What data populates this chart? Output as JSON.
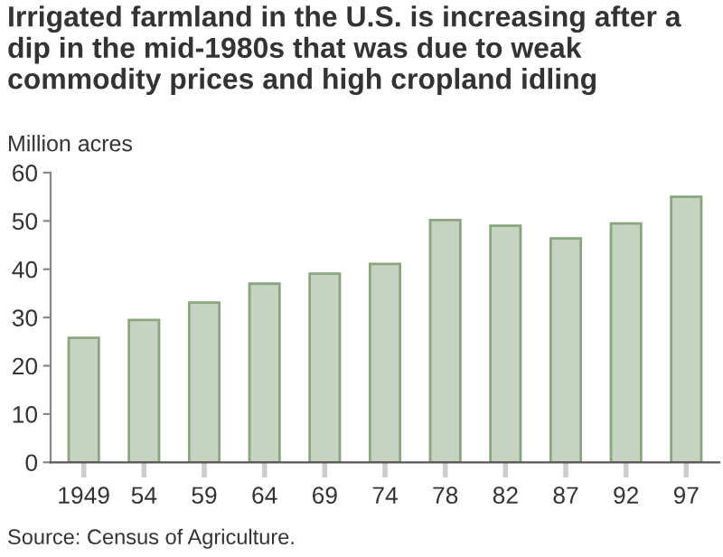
{
  "chart_data": {
    "type": "bar",
    "title": "Irrigated farmland in the U.S. is increasing after a dip in the mid-1980s that was due to weak commodity prices and high cropland idling",
    "ylabel": "Million acres",
    "categories": [
      "1949",
      "54",
      "59",
      "64",
      "69",
      "74",
      "78",
      "82",
      "87",
      "92",
      "97"
    ],
    "values": [
      25.8,
      29.5,
      33.1,
      37,
      39.1,
      41.1,
      50.2,
      49,
      46.4,
      49.5,
      55
    ],
    "color": "#c5d3c0",
    "ylim": [
      0,
      60
    ],
    "yticks": [
      0,
      10,
      20,
      30,
      40,
      50,
      60
    ],
    "grid": false,
    "annotations": [
      "Source: Census of Agriculture."
    ]
  }
}
